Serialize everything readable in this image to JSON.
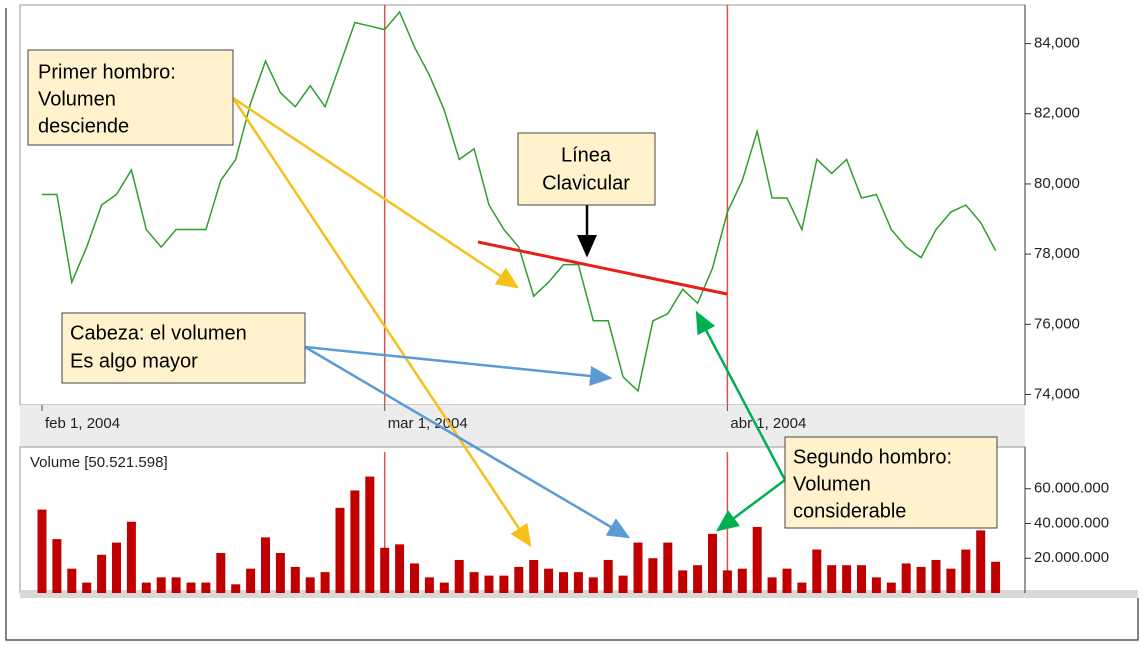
{
  "chart_data": [
    {
      "type": "line",
      "categories": [
        "feb 1, 2004",
        null,
        null,
        null,
        null,
        null,
        null,
        null,
        null,
        null,
        null,
        null,
        null,
        null,
        null,
        null,
        null,
        null,
        null,
        null,
        null,
        null,
        null,
        "mar 1, 2004",
        null,
        null,
        null,
        null,
        null,
        null,
        null,
        null,
        null,
        null,
        null,
        null,
        null,
        null,
        null,
        null,
        null,
        null,
        null,
        null,
        null,
        null,
        "abr 1, 2004",
        null,
        null,
        null,
        null,
        null,
        null,
        null,
        null,
        null,
        null,
        null,
        null,
        null,
        null,
        null,
        null,
        null,
        null
      ],
      "values": [
        79700,
        79700,
        77200,
        78200,
        79400,
        79700,
        80400,
        78700,
        78200,
        78700,
        78700,
        78700,
        80100,
        80700,
        82300,
        83500,
        82600,
        82200,
        82800,
        82200,
        83400,
        84600,
        84500,
        84400,
        84900,
        83900,
        83100,
        82100,
        80700,
        81000,
        79400,
        78700,
        78200,
        76800,
        77200,
        77700,
        77700,
        76100,
        76100,
        74500,
        74100,
        76100,
        76300,
        77000,
        76600,
        77600,
        79200,
        80100,
        81500,
        79600,
        79600,
        78700,
        80700,
        80300,
        80700,
        79600,
        79700,
        78700,
        78200,
        77900,
        78700,
        79200,
        79400,
        78900,
        78100
      ],
      "color": "#2e9e2e",
      "ylim": [
        73700,
        85100
      ],
      "yticks": [
        {
          "value": 74000,
          "label": "74,000"
        },
        {
          "value": 76000,
          "label": "76,000"
        },
        {
          "value": 78000,
          "label": "78,000"
        },
        {
          "value": 80000,
          "label": "80,000"
        },
        {
          "value": 82000,
          "label": "82,000"
        },
        {
          "value": 84000,
          "label": "84,000"
        }
      ]
    },
    {
      "type": "bar",
      "title": "Volume [50.521.598]",
      "values": [
        48000000,
        31000000,
        14000000,
        6000000,
        22000000,
        29000000,
        41000000,
        6000000,
        9000000,
        9000000,
        6000000,
        6000000,
        23000000,
        5000000,
        14000000,
        32000000,
        23000000,
        15000000,
        9000000,
        12000000,
        49000000,
        59000000,
        67000000,
        26000000,
        28000000,
        17000000,
        9000000,
        6000000,
        19000000,
        12000000,
        10000000,
        10000000,
        15000000,
        19000000,
        14000000,
        12000000,
        12000000,
        9000000,
        19000000,
        10000000,
        29000000,
        20000000,
        29000000,
        13000000,
        16000000,
        34000000,
        13000000,
        14000000,
        38000000,
        9000000,
        14000000,
        6000000,
        25000000,
        16000000,
        16000000,
        16000000,
        9000000,
        6000000,
        17000000,
        15000000,
        19000000,
        14000000,
        25000000,
        36000000,
        18000000
      ],
      "color": "#c00000",
      "ylim": [
        0,
        84000000
      ],
      "yticks": [
        {
          "value": 20000000,
          "label": "20.000.000"
        },
        {
          "value": 40000000,
          "label": "40.000.000"
        },
        {
          "value": 60000000,
          "label": "60.000.000"
        }
      ]
    }
  ],
  "annotations": [
    {
      "lines": [
        "Primer hombro:",
        "Volumen",
        "desciende"
      ]
    },
    {
      "lines": [
        "Línea",
        "Clavicular"
      ]
    },
    {
      "lines": [
        "Cabeza: el volumen",
        "Es algo mayor"
      ]
    },
    {
      "lines": [
        "Segundo hombro:",
        "Volumen",
        "considerable"
      ]
    }
  ]
}
